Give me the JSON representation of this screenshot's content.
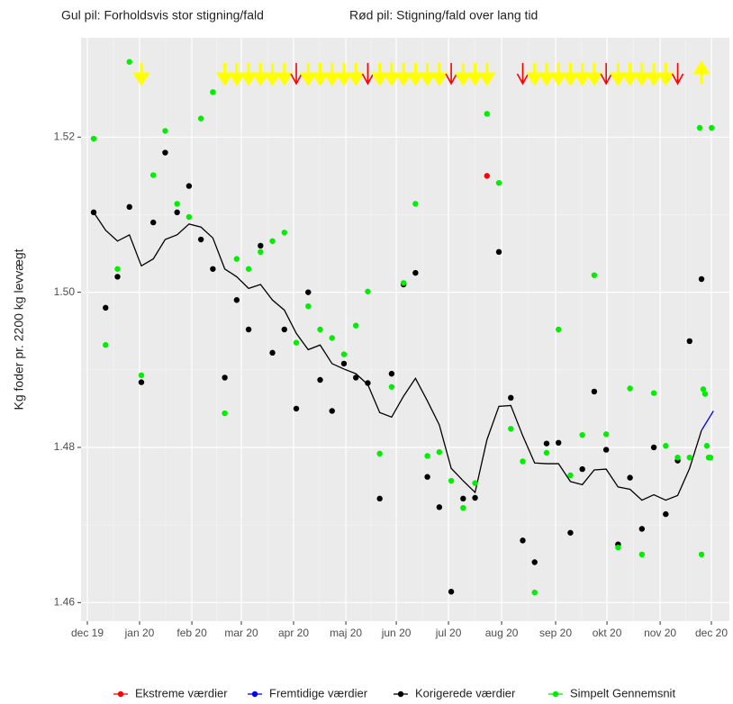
{
  "chart_data": {
    "type": "scatter",
    "annotations": [
      "Gul pil: Forholdsvis stor stigning/fald",
      "Rød pil: Stigning/fald over lang tid"
    ],
    "y_label": "Kg foder pr. 2200 kg levvægt",
    "xlim": [
      -0.06,
      54.34
    ],
    "xticks": [
      {
        "value": 0.47,
        "label": "dec 19"
      },
      {
        "value": 4.85,
        "label": "jan 20"
      },
      {
        "value": 9.24,
        "label": "feb 20"
      },
      {
        "value": 13.39,
        "label": "mar 20"
      },
      {
        "value": 17.77,
        "label": "apr 20"
      },
      {
        "value": 22.16,
        "label": "maj 20"
      },
      {
        "value": 26.39,
        "label": "jun 20"
      },
      {
        "value": 30.77,
        "label": "jul 20"
      },
      {
        "value": 35.23,
        "label": "aug 20"
      },
      {
        "value": 39.76,
        "label": "sep 20"
      },
      {
        "value": 44.07,
        "label": "okt 20"
      },
      {
        "value": 48.53,
        "label": "nov 20"
      },
      {
        "value": 52.83,
        "label": "dec 20"
      }
    ],
    "ylim": [
      1.4576,
      1.5328
    ],
    "yticks": [
      1.46,
      1.48,
      {
        "value": 1.5,
        "label": "1.50"
      },
      1.52
    ],
    "grid": true,
    "legend": "bottom",
    "series": [
      {
        "name": "Ekstreme værdier",
        "color": "#ff0000",
        "x": [
          34
        ],
        "values": [
          1.515
        ]
      },
      {
        "name": "Fremtidige værdier",
        "color": "#0000ff",
        "line_x": [
          52,
          53
        ],
        "line_values": [
          1.4822,
          1.4847
        ]
      },
      {
        "name": "Korigerede værdier",
        "color": "#000000",
        "x": [
          1,
          2,
          3,
          4,
          5,
          6,
          7,
          8,
          9,
          10,
          11,
          12,
          13,
          14,
          15,
          16,
          17,
          18,
          19,
          20,
          21,
          22,
          23,
          24,
          25,
          26,
          27,
          28,
          29,
          30,
          31,
          32,
          33,
          34,
          35,
          36,
          37,
          38,
          39,
          40,
          41,
          42,
          43,
          44,
          45,
          46,
          47,
          48,
          49,
          50,
          51,
          52
        ],
        "values": [
          1.5103,
          1.498,
          1.502,
          1.511,
          1.4884,
          1.509,
          1.518,
          1.5103,
          1.5137,
          1.5068,
          1.503,
          1.489,
          1.499,
          1.4952,
          1.506,
          1.4922,
          1.4952,
          1.485,
          1.5,
          1.4887,
          1.4847,
          1.4908,
          1.489,
          1.4883,
          1.4734,
          1.4895,
          1.501,
          1.5025,
          1.4762,
          1.4723,
          1.4614,
          1.4734,
          1.4735,
          null,
          1.5052,
          1.4864,
          1.468,
          1.4652,
          1.4805,
          1.4806,
          1.469,
          1.4772,
          1.4872,
          1.4797,
          1.4675,
          1.4761,
          1.4695,
          1.48,
          1.4714,
          1.4783,
          1.4937,
          1.5017
        ],
        "line_x": [
          1,
          2,
          3,
          4,
          5,
          6,
          7,
          8,
          9,
          10,
          11,
          12,
          13,
          14,
          15,
          16,
          17,
          18,
          19,
          20,
          21,
          22,
          23,
          24,
          25,
          26,
          27,
          28,
          29,
          30,
          31,
          32,
          33,
          34,
          35,
          36,
          37,
          38,
          39,
          40,
          41,
          42,
          43,
          44,
          45,
          46,
          47,
          48,
          49,
          50,
          51,
          52
        ],
        "line_values": [
          1.5103,
          1.508,
          1.5066,
          1.5074,
          1.5034,
          1.5043,
          1.5068,
          1.5074,
          1.5088,
          1.5084,
          1.507,
          1.503,
          1.502,
          1.5005,
          1.501,
          1.499,
          1.4977,
          1.4947,
          1.4926,
          1.4932,
          1.4908,
          1.4901,
          1.4895,
          1.4881,
          1.4845,
          1.4839,
          1.4866,
          1.4889,
          1.486,
          1.4829,
          1.4773,
          1.4757,
          1.4742,
          1.481,
          1.4853,
          1.4854,
          1.4815,
          1.478,
          1.4779,
          1.4779,
          1.4756,
          1.4752,
          1.4771,
          1.4772,
          1.4749,
          1.4746,
          1.4732,
          1.4739,
          1.4732,
          1.4738,
          1.4773,
          1.4822
        ]
      },
      {
        "name": "Simpelt Gennemsnit",
        "color": "#00ee00",
        "x": [
          1,
          2,
          3,
          4,
          5,
          6,
          7,
          8,
          9,
          10,
          11,
          12,
          13,
          14,
          15,
          16,
          17,
          18,
          19,
          20,
          21,
          22,
          23,
          24,
          25,
          26,
          27,
          28,
          29,
          30,
          31,
          32,
          33,
          34,
          35,
          36,
          37,
          38,
          39,
          40,
          41,
          42,
          43,
          44,
          45,
          46,
          47,
          48,
          49,
          50,
          51,
          51.85,
          52,
          52.15,
          52.3,
          52.45,
          52.6,
          52.75,
          52.85
        ],
        "values": [
          1.5198,
          1.4932,
          1.503,
          1.5297,
          1.4893,
          1.5151,
          1.5208,
          1.5114,
          1.5097,
          1.5224,
          1.5258,
          1.4844,
          1.5043,
          1.503,
          1.5052,
          1.5066,
          1.5077,
          1.4935,
          1.4982,
          1.4952,
          1.4941,
          1.492,
          1.4957,
          1.5001,
          1.4792,
          1.4878,
          1.5012,
          1.5114,
          1.4789,
          1.4794,
          1.4757,
          1.4722,
          1.4754,
          1.523,
          1.5141,
          1.4824,
          1.4782,
          1.4613,
          1.4793,
          1.4952,
          1.4764,
          1.4816,
          1.5022,
          1.4817,
          1.4671,
          1.4876,
          1.4662,
          1.487,
          1.4802,
          1.4787,
          1.4787,
          1.5212,
          1.4662,
          1.4875,
          1.4869,
          1.4802,
          1.4787,
          1.4787,
          1.5212
        ]
      }
    ],
    "arrows": [
      {
        "x": 5,
        "direction": "down",
        "color": "#ffff00"
      },
      {
        "x": 12,
        "direction": "down",
        "color": "#ffff00"
      },
      {
        "x": 13,
        "direction": "down",
        "color": "#ffff00"
      },
      {
        "x": 14,
        "direction": "down",
        "color": "#ffff00"
      },
      {
        "x": 15,
        "direction": "down",
        "color": "#ffff00"
      },
      {
        "x": 16,
        "direction": "down",
        "color": "#ffff00"
      },
      {
        "x": 17,
        "direction": "down",
        "color": "#ffff00"
      },
      {
        "x": 18,
        "direction": "down",
        "color": "#ff0000"
      },
      {
        "x": 19,
        "direction": "down",
        "color": "#ffff00"
      },
      {
        "x": 20,
        "direction": "down",
        "color": "#ffff00"
      },
      {
        "x": 21,
        "direction": "down",
        "color": "#ffff00"
      },
      {
        "x": 22,
        "direction": "down",
        "color": "#ffff00"
      },
      {
        "x": 23,
        "direction": "down",
        "color": "#ffff00"
      },
      {
        "x": 24,
        "direction": "down",
        "color": "#ff0000"
      },
      {
        "x": 25,
        "direction": "down",
        "color": "#ffff00"
      },
      {
        "x": 26,
        "direction": "down",
        "color": "#ffff00"
      },
      {
        "x": 27,
        "direction": "down",
        "color": "#ffff00"
      },
      {
        "x": 28,
        "direction": "down",
        "color": "#ffff00"
      },
      {
        "x": 29,
        "direction": "down",
        "color": "#ffff00"
      },
      {
        "x": 30,
        "direction": "down",
        "color": "#ffff00"
      },
      {
        "x": 31,
        "direction": "down",
        "color": "#ff0000"
      },
      {
        "x": 32,
        "direction": "down",
        "color": "#ffff00"
      },
      {
        "x": 33,
        "direction": "down",
        "color": "#ffff00"
      },
      {
        "x": 34,
        "direction": "down",
        "color": "#ffff00"
      },
      {
        "x": 37,
        "direction": "down",
        "color": "#ff0000"
      },
      {
        "x": 38,
        "direction": "down",
        "color": "#ffff00"
      },
      {
        "x": 39,
        "direction": "down",
        "color": "#ffff00"
      },
      {
        "x": 40,
        "direction": "down",
        "color": "#ffff00"
      },
      {
        "x": 41,
        "direction": "down",
        "color": "#ffff00"
      },
      {
        "x": 42,
        "direction": "down",
        "color": "#ffff00"
      },
      {
        "x": 43,
        "direction": "down",
        "color": "#ffff00"
      },
      {
        "x": 44,
        "direction": "down",
        "color": "#ff0000"
      },
      {
        "x": 45,
        "direction": "down",
        "color": "#ffff00"
      },
      {
        "x": 46,
        "direction": "down",
        "color": "#ffff00"
      },
      {
        "x": 47,
        "direction": "down",
        "color": "#ffff00"
      },
      {
        "x": 48,
        "direction": "down",
        "color": "#ffff00"
      },
      {
        "x": 49,
        "direction": "down",
        "color": "#ffff00"
      },
      {
        "x": 50,
        "direction": "down",
        "color": "#ff0000"
      },
      {
        "x": 52,
        "direction": "up",
        "color": "#ffff00"
      }
    ]
  }
}
